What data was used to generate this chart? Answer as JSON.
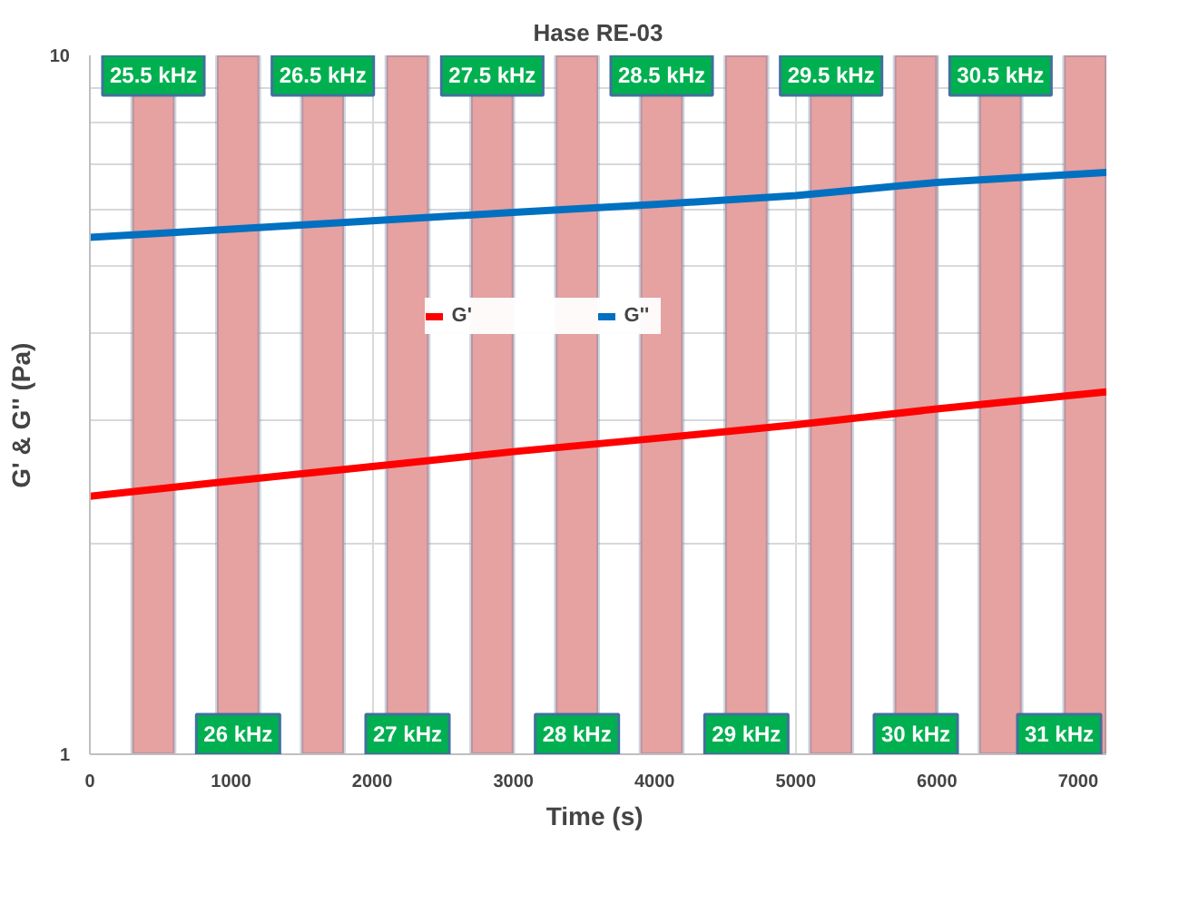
{
  "chart_data": {
    "type": "line",
    "title": "Hase RE-03",
    "xlabel": "Time  (s)",
    "ylabel": "G'  &  G''  (Pa)",
    "x": [
      0,
      1000,
      2000,
      3000,
      4000,
      5000,
      6000,
      7200
    ],
    "series": [
      {
        "name": "G'",
        "color": "#ff0000",
        "values": [
          2.34,
          2.46,
          2.58,
          2.71,
          2.83,
          2.96,
          3.12,
          3.3
        ]
      },
      {
        "name": "G''",
        "color": "#0070c0",
        "values": [
          5.49,
          5.64,
          5.8,
          5.96,
          6.12,
          6.3,
          6.58,
          6.8
        ]
      }
    ],
    "xlim": [
      0,
      7200
    ],
    "xticks": [
      0,
      1000,
      2000,
      3000,
      4000,
      5000,
      6000,
      7000
    ],
    "ylim": [
      1,
      10
    ],
    "yticks": [
      1,
      {
        "value": 2,
        "label": null
      },
      {
        "value": 3,
        "label": null
      },
      {
        "value": 4,
        "label": null
      },
      {
        "value": 5,
        "label": null
      },
      {
        "value": 6,
        "label": null
      },
      {
        "value": 7,
        "label": null
      },
      {
        "value": 8,
        "label": null
      },
      {
        "value": 9,
        "label": null
      },
      10
    ],
    "log": "y",
    "grid": true,
    "legend": "top",
    "marker": "none",
    "line_style": "solid",
    "bands": [
      {
        "axis": "x",
        "from": 300,
        "to": 600,
        "label": "25.5 kHz",
        "color": "#e6a1a1"
      },
      {
        "axis": "x",
        "from": 900,
        "to": 1200,
        "label": "26 kHz",
        "color": "#e6a1a1"
      },
      {
        "axis": "x",
        "from": 1500,
        "to": 1800,
        "label": "26.5 kHz",
        "color": "#e6a1a1"
      },
      {
        "axis": "x",
        "from": 2100,
        "to": 2400,
        "label": "27 kHz",
        "color": "#e6a1a1"
      },
      {
        "axis": "x",
        "from": 2700,
        "to": 3000,
        "label": "27.5 kHz",
        "color": "#e6a1a1"
      },
      {
        "axis": "x",
        "from": 3300,
        "to": 3600,
        "label": "28 kHz",
        "color": "#e6a1a1"
      },
      {
        "axis": "x",
        "from": 3900,
        "to": 4200,
        "label": "28.5 kHz",
        "color": "#e6a1a1"
      },
      {
        "axis": "x",
        "from": 4500,
        "to": 4800,
        "label": "29 kHz",
        "color": "#e6a1a1"
      },
      {
        "axis": "x",
        "from": 5100,
        "to": 5400,
        "label": "29.5 kHz",
        "color": "#e6a1a1"
      },
      {
        "axis": "x",
        "from": 5700,
        "to": 6000,
        "label": "30 kHz",
        "color": "#e6a1a1"
      },
      {
        "axis": "x",
        "from": 6300,
        "to": 6600,
        "label": "30.5 kHz",
        "color": "#e6a1a1"
      },
      {
        "axis": "x",
        "from": 6900,
        "to": 7200,
        "label": "31 kHz",
        "color": "#e6a1a1"
      }
    ]
  }
}
